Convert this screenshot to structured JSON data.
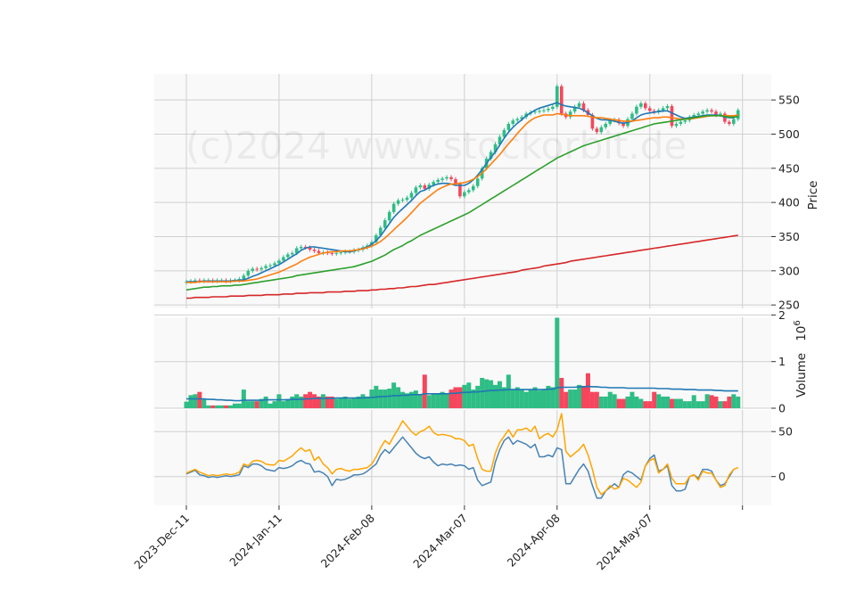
{
  "chart_data": {
    "type": "candlestick",
    "watermark": "(c)2024 www.stockorbit.de",
    "x_tick_labels": [
      "2023-Dec-11",
      "2024-Jan-11",
      "2024-Feb-08",
      "2024-Mar-07",
      "2024-Apr-08",
      "2024-May-07"
    ],
    "x_tick_index": [
      0,
      21,
      42,
      63,
      84,
      105
    ],
    "price_panel": {
      "ylabel": "Price",
      "ylim": [
        245,
        588
      ],
      "yticks": [
        250,
        300,
        350,
        400,
        450,
        500,
        550
      ],
      "up_color": "#2ebd85",
      "down_color": "#f6465d",
      "close": [
        284,
        285,
        286,
        285,
        286,
        286,
        285,
        286,
        286,
        285,
        286,
        286,
        288,
        293,
        300,
        303,
        302,
        304,
        307,
        308,
        311,
        315,
        320,
        324,
        326,
        333,
        335,
        334,
        331,
        329,
        326,
        327,
        326,
        325,
        326,
        327,
        328,
        328,
        330,
        331,
        334,
        337,
        342,
        352,
        363,
        374,
        386,
        398,
        403,
        404,
        407,
        414,
        422,
        425,
        420,
        426,
        430,
        433,
        435,
        437,
        434,
        427,
        409,
        415,
        418,
        424,
        435,
        450,
        464,
        474,
        485,
        496,
        506,
        515,
        520,
        522,
        525,
        530,
        532,
        533,
        534,
        535,
        537,
        540,
        570,
        530,
        525,
        533,
        540,
        545,
        535,
        528,
        508,
        503,
        510,
        515,
        520,
        521,
        516,
        512,
        522,
        530,
        540,
        545,
        538,
        534,
        532,
        535,
        538,
        541,
        512,
        515,
        518,
        520,
        525,
        528,
        530,
        533,
        535,
        533,
        528,
        530,
        518,
        515,
        522,
        535
      ],
      "series": [
        {
          "name": "",
          "color": "#1f77b4",
          "values": [
            284,
            284,
            284,
            284,
            285,
            285,
            285,
            285,
            285,
            285,
            285,
            286,
            286,
            287,
            289,
            292,
            294,
            297,
            300,
            303,
            306,
            309,
            313,
            317,
            321,
            325,
            330,
            333,
            335,
            335,
            334,
            333,
            332,
            331,
            330,
            329,
            328,
            328,
            329,
            331,
            333,
            335,
            339,
            344,
            351,
            360,
            369,
            378,
            385,
            391,
            397,
            403,
            410,
            416,
            418,
            422,
            425,
            427,
            428,
            428,
            427,
            425,
            425,
            425,
            428,
            433,
            440,
            448,
            457,
            466,
            474,
            484,
            494,
            503,
            510,
            516,
            521,
            527,
            531,
            535,
            538,
            540,
            542,
            544,
            546,
            543,
            541,
            540,
            539,
            538,
            535,
            531,
            527,
            523,
            521,
            521,
            520,
            519,
            517,
            516,
            517,
            519,
            524,
            528,
            530,
            531,
            532,
            533,
            534,
            534,
            531,
            528,
            525,
            523,
            524,
            525,
            526,
            527,
            528,
            528,
            528,
            527,
            525,
            524,
            524,
            527
          ]
        },
        {
          "name": "",
          "color": "#ff7f0e",
          "values": [
            283,
            283,
            283,
            284,
            284,
            284,
            284,
            284,
            284,
            284,
            284,
            285,
            285,
            285,
            286,
            287,
            288,
            290,
            292,
            294,
            296,
            298,
            301,
            304,
            307,
            310,
            314,
            317,
            320,
            322,
            324,
            326,
            327,
            328,
            328,
            329,
            329,
            329,
            330,
            331,
            332,
            334,
            336,
            339,
            343,
            348,
            354,
            360,
            366,
            372,
            378,
            385,
            392,
            399,
            404,
            409,
            414,
            419,
            422,
            425,
            427,
            427,
            428,
            429,
            431,
            434,
            438,
            443,
            449,
            456,
            463,
            470,
            478,
            486,
            493,
            501,
            508,
            515,
            520,
            524,
            526,
            528,
            528,
            528,
            530,
            529,
            528,
            527,
            527,
            527,
            527,
            526,
            525,
            524,
            524,
            523,
            522,
            521,
            520,
            519,
            519,
            519,
            520,
            521,
            522,
            523,
            524,
            524,
            525,
            525,
            524,
            523,
            522,
            522,
            522,
            523,
            524,
            525,
            526,
            527,
            527,
            527,
            527,
            527,
            527,
            528
          ]
        },
        {
          "name": "",
          "color": "#2ca02c",
          "values": [
            272,
            273,
            274,
            275,
            276,
            276,
            277,
            277,
            278,
            278,
            278,
            279,
            279,
            280,
            281,
            282,
            283,
            284,
            285,
            286,
            287,
            288,
            289,
            290,
            291,
            293,
            294,
            295,
            296,
            297,
            298,
            299,
            300,
            301,
            302,
            303,
            304,
            305,
            306,
            308,
            310,
            312,
            314,
            317,
            320,
            323,
            327,
            331,
            334,
            337,
            341,
            344,
            348,
            352,
            355,
            358,
            361,
            364,
            367,
            370,
            373,
            376,
            379,
            382,
            385,
            389,
            393,
            397,
            401,
            405,
            409,
            413,
            417,
            421,
            425,
            429,
            433,
            437,
            441,
            445,
            449,
            453,
            457,
            461,
            465,
            468,
            471,
            474,
            477,
            480,
            483,
            485,
            487,
            489,
            491,
            493,
            495,
            497,
            499,
            501,
            503,
            505,
            507,
            509,
            511,
            513,
            515,
            516,
            517,
            518,
            519,
            520,
            521,
            522,
            523,
            524,
            525,
            526,
            527,
            527,
            527,
            527,
            526,
            525,
            525,
            526
          ]
        },
        {
          "name": "",
          "color": "#d62728",
          "values": [
            260,
            260,
            261,
            261,
            261,
            261,
            262,
            262,
            262,
            262,
            263,
            263,
            263,
            263,
            264,
            264,
            264,
            264,
            265,
            265,
            265,
            265,
            266,
            266,
            266,
            267,
            267,
            267,
            268,
            268,
            268,
            268,
            269,
            269,
            269,
            269,
            270,
            270,
            270,
            271,
            271,
            271,
            272,
            272,
            273,
            273,
            274,
            274,
            275,
            275,
            276,
            277,
            277,
            278,
            279,
            280,
            280,
            281,
            282,
            283,
            284,
            285,
            286,
            287,
            288,
            289,
            290,
            291,
            292,
            293,
            294,
            295,
            296,
            297,
            298,
            299,
            301,
            302,
            303,
            304,
            305,
            307,
            308,
            309,
            310,
            311,
            312,
            314,
            315,
            316,
            317,
            318,
            319,
            320,
            321,
            322,
            323,
            324,
            325,
            326,
            327,
            328,
            329,
            330,
            331,
            332,
            333,
            334,
            335,
            336,
            337,
            338,
            339,
            340,
            341,
            342,
            343,
            344,
            345,
            346,
            347,
            348,
            349,
            350,
            351,
            352
          ]
        }
      ]
    },
    "volume_panel": {
      "ylabel": "Volume",
      "ylabel_exponent": "10^6",
      "ylim": [
        0,
        1.95
      ],
      "yticks": [
        0,
        1,
        2
      ],
      "values": [
        0.14,
        0.28,
        0.3,
        0.35,
        0.2,
        0.06,
        0.06,
        0.06,
        0.06,
        0.06,
        0.06,
        0.1,
        0.1,
        0.4,
        0.15,
        0.15,
        0.15,
        0.2,
        0.25,
        0.1,
        0.15,
        0.3,
        0.15,
        0.2,
        0.25,
        0.3,
        0.25,
        0.3,
        0.35,
        0.3,
        0.25,
        0.3,
        0.25,
        0.25,
        0.2,
        0.22,
        0.25,
        0.2,
        0.22,
        0.25,
        0.3,
        0.25,
        0.4,
        0.48,
        0.4,
        0.4,
        0.42,
        0.55,
        0.45,
        0.35,
        0.32,
        0.35,
        0.38,
        0.3,
        0.72,
        0.28,
        0.3,
        0.3,
        0.35,
        0.3,
        0.4,
        0.45,
        0.45,
        0.5,
        0.55,
        0.4,
        0.48,
        0.65,
        0.62,
        0.6,
        0.5,
        0.58,
        0.45,
        0.72,
        0.4,
        0.45,
        0.4,
        0.35,
        0.4,
        0.45,
        0.38,
        0.4,
        0.48,
        0.45,
        1.94,
        0.65,
        0.35,
        0.4,
        0.4,
        0.5,
        0.48,
        0.75,
        0.35,
        0.35,
        0.25,
        0.25,
        0.35,
        0.3,
        0.2,
        0.2,
        0.25,
        0.35,
        0.25,
        0.2,
        0.15,
        0.15,
        0.35,
        0.3,
        0.25,
        0.25,
        0.2,
        0.2,
        0.2,
        0.15,
        0.15,
        0.28,
        0.15,
        0.15,
        0.3,
        0.28,
        0.25,
        0.15,
        0.15,
        0.25,
        0.3,
        0.25
      ],
      "ma_color": "#1f77b4",
      "ma_values": [
        0.2,
        0.2,
        0.2,
        0.2,
        0.2,
        0.19,
        0.19,
        0.18,
        0.18,
        0.17,
        0.17,
        0.16,
        0.16,
        0.17,
        0.17,
        0.17,
        0.17,
        0.17,
        0.18,
        0.18,
        0.18,
        0.18,
        0.18,
        0.18,
        0.19,
        0.19,
        0.19,
        0.2,
        0.2,
        0.21,
        0.21,
        0.21,
        0.21,
        0.21,
        0.22,
        0.22,
        0.22,
        0.22,
        0.22,
        0.22,
        0.22,
        0.23,
        0.23,
        0.24,
        0.25,
        0.25,
        0.26,
        0.27,
        0.27,
        0.28,
        0.28,
        0.29,
        0.29,
        0.29,
        0.31,
        0.31,
        0.31,
        0.31,
        0.31,
        0.31,
        0.32,
        0.32,
        0.33,
        0.34,
        0.34,
        0.35,
        0.35,
        0.36,
        0.37,
        0.38,
        0.38,
        0.39,
        0.39,
        0.4,
        0.4,
        0.4,
        0.4,
        0.4,
        0.4,
        0.4,
        0.4,
        0.4,
        0.41,
        0.41,
        0.44,
        0.45,
        0.45,
        0.45,
        0.45,
        0.46,
        0.46,
        0.47,
        0.46,
        0.46,
        0.45,
        0.45,
        0.44,
        0.44,
        0.44,
        0.44,
        0.43,
        0.43,
        0.43,
        0.43,
        0.43,
        0.43,
        0.43,
        0.42,
        0.42,
        0.42,
        0.41,
        0.41,
        0.41,
        0.4,
        0.4,
        0.4,
        0.39,
        0.39,
        0.39,
        0.39,
        0.38,
        0.38,
        0.37,
        0.37,
        0.37,
        0.37
      ]
    },
    "oscillator_panel": {
      "ylim": [
        -32,
        74
      ],
      "yticks": [
        0,
        50
      ],
      "series": [
        {
          "name": "",
          "color": "#4682b4",
          "values": [
            3,
            5,
            7,
            2,
            1,
            -1,
            0,
            -1,
            0,
            1,
            0,
            1,
            2,
            12,
            10,
            14,
            14,
            12,
            8,
            7,
            6,
            10,
            9,
            10,
            12,
            16,
            18,
            15,
            14,
            5,
            6,
            4,
            0,
            -10,
            -3,
            -4,
            -3,
            -1,
            2,
            2,
            3,
            6,
            10,
            14,
            24,
            30,
            26,
            32,
            38,
            44,
            38,
            32,
            26,
            22,
            20,
            22,
            16,
            12,
            14,
            13,
            14,
            12,
            13,
            12,
            8,
            10,
            -4,
            -10,
            -8,
            -6,
            16,
            30,
            40,
            44,
            36,
            40,
            38,
            36,
            32,
            36,
            22,
            22,
            24,
            22,
            32,
            30,
            -8,
            -8,
            0,
            8,
            14,
            6,
            -10,
            -24,
            -24,
            -16,
            -12,
            -8,
            -12,
            2,
            6,
            4,
            0,
            -4,
            12,
            20,
            24,
            6,
            8,
            12,
            -10,
            -16,
            -16,
            -14,
            0,
            2,
            -2,
            8,
            8,
            6,
            -4,
            -10,
            -8,
            0,
            8
          ]
        },
        {
          "name": "",
          "color": "#ffa500",
          "values": [
            4,
            6,
            8,
            5,
            3,
            1,
            2,
            1,
            2,
            3,
            2,
            3,
            5,
            14,
            12,
            17,
            18,
            17,
            14,
            13,
            13,
            18,
            17,
            20,
            23,
            28,
            32,
            28,
            30,
            18,
            22,
            14,
            10,
            3,
            8,
            9,
            7,
            6,
            8,
            8,
            9,
            10,
            14,
            22,
            32,
            40,
            36,
            45,
            53,
            62,
            56,
            50,
            46,
            50,
            52,
            56,
            49,
            46,
            47,
            46,
            45,
            42,
            42,
            40,
            34,
            36,
            20,
            8,
            6,
            6,
            26,
            38,
            45,
            52,
            44,
            52,
            52,
            54,
            50,
            56,
            42,
            46,
            48,
            44,
            52,
            70,
            28,
            22,
            26,
            30,
            36,
            24,
            8,
            -12,
            -20,
            -16,
            -10,
            -14,
            -12,
            -2,
            -4,
            -8,
            -12,
            -6,
            12,
            18,
            20,
            4,
            8,
            14,
            -2,
            -8,
            -8,
            -8,
            0,
            2,
            -4,
            6,
            4,
            4,
            -4,
            -12,
            -10,
            2,
            8,
            10
          ]
        }
      ]
    }
  }
}
